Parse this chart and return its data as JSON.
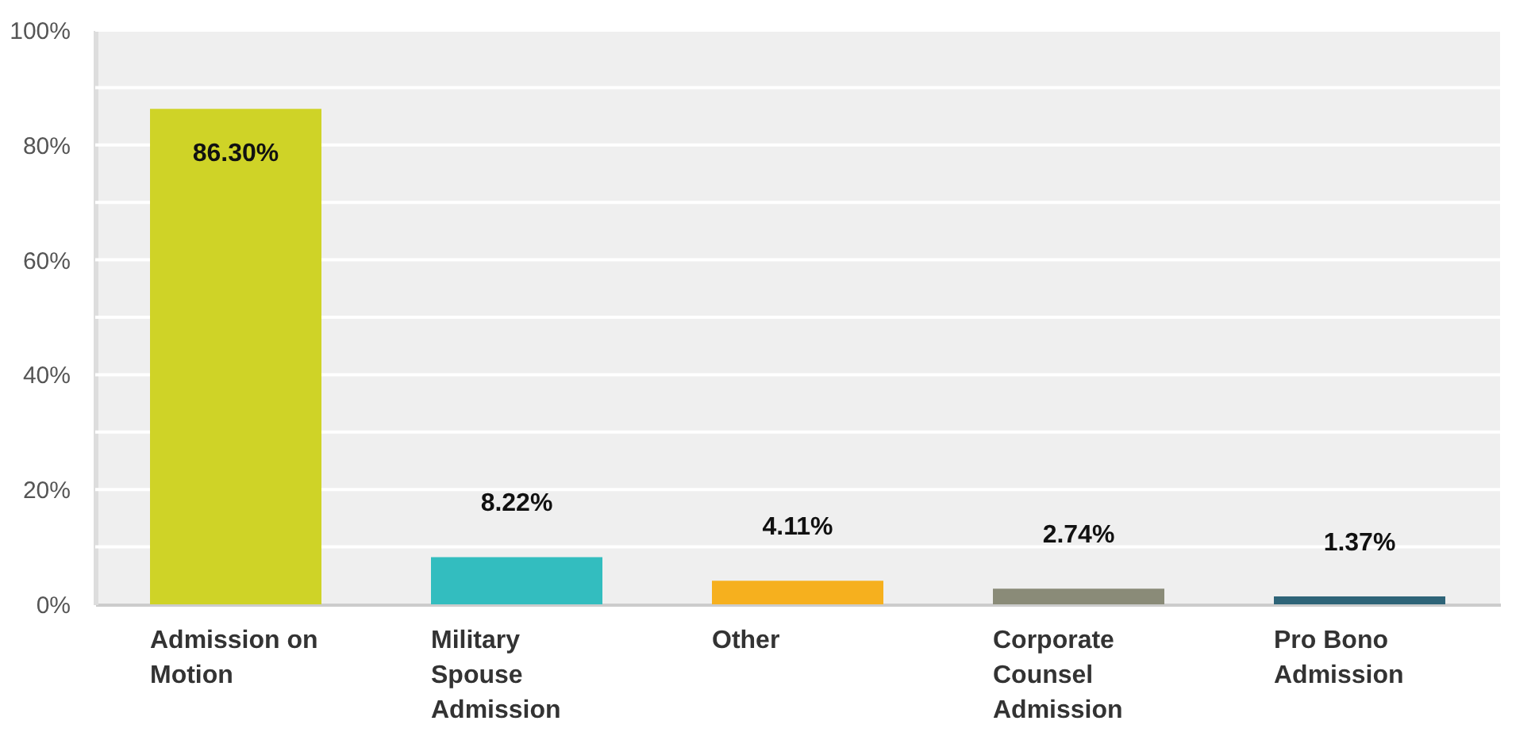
{
  "chart_data": {
    "type": "bar",
    "categories": [
      "Admission on Motion",
      "Military Spouse Admission",
      "Other",
      "Corporate Counsel Admission",
      "Pro Bono Admission"
    ],
    "values": [
      86.3,
      8.22,
      4.11,
      2.74,
      1.37
    ],
    "colors": [
      "#cfd327",
      "#33bdbf",
      "#f6b01e",
      "#8a8b78",
      "#2e6478"
    ],
    "value_labels": [
      "86.30%",
      "8.22%",
      "4.11%",
      "2.74%",
      "1.37%"
    ],
    "ylim": [
      0,
      100
    ],
    "yticks": [
      {
        "value": 0,
        "label": "0%"
      },
      {
        "value": 10,
        "label": null
      },
      {
        "value": 20,
        "label": "20%"
      },
      {
        "value": 30,
        "label": null
      },
      {
        "value": 40,
        "label": "40%"
      },
      {
        "value": 50,
        "label": null
      },
      {
        "value": 60,
        "label": "60%"
      },
      {
        "value": 70,
        "label": null
      },
      {
        "value": 80,
        "label": "80%"
      },
      {
        "value": 90,
        "label": null
      },
      {
        "value": 100,
        "label": "100%"
      }
    ],
    "grid": "y"
  }
}
